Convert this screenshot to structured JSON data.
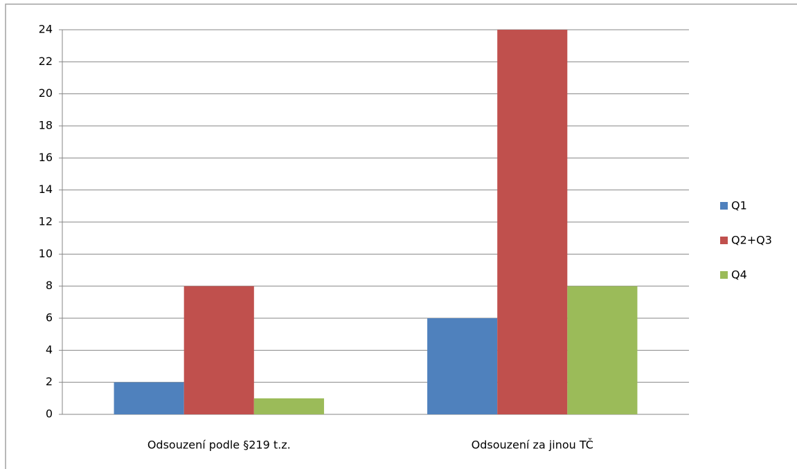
{
  "chart_data": {
    "type": "bar",
    "categories": [
      "Odsouzení podle §219 t.z.",
      "Odsouzení za jinou TČ"
    ],
    "series": [
      {
        "name": "Q1",
        "color": "#4f81bd",
        "values": [
          2,
          6
        ]
      },
      {
        "name": "Q2+Q3",
        "color": "#c0504d",
        "values": [
          8,
          24
        ]
      },
      {
        "name": "Q4",
        "color": "#9bbb59",
        "values": [
          1,
          8
        ]
      }
    ],
    "ylim": [
      0,
      24
    ],
    "yticks": [
      0,
      2,
      4,
      6,
      8,
      10,
      12,
      14,
      16,
      18,
      20,
      22,
      24
    ],
    "grid": true,
    "legend": "right"
  }
}
